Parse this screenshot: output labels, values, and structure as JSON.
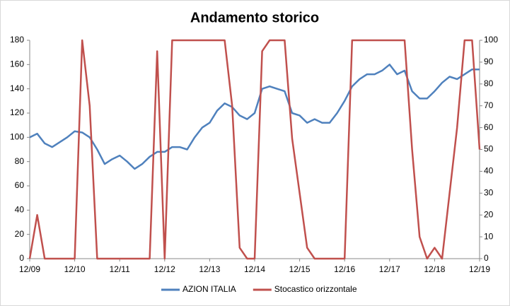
{
  "chart_data": {
    "type": "line",
    "title": "Andamento storico",
    "categories": [
      "12/09",
      null,
      null,
      null,
      null,
      null,
      "12/10",
      null,
      null,
      null,
      null,
      null,
      "12/11",
      null,
      null,
      null,
      null,
      null,
      "12/12",
      null,
      null,
      null,
      null,
      null,
      "12/13",
      null,
      null,
      null,
      null,
      null,
      "12/14",
      null,
      null,
      null,
      null,
      null,
      "12/15",
      null,
      null,
      null,
      null,
      null,
      "12/16",
      null,
      null,
      null,
      null,
      null,
      "12/17",
      null,
      null,
      null,
      null,
      null,
      "12/18",
      null,
      null,
      null,
      null,
      null,
      "12/19"
    ],
    "series": [
      {
        "name": "AZION ITALIA",
        "color": "#4f81bd",
        "axis": "y",
        "values": [
          100,
          103,
          95,
          92,
          96,
          100,
          105,
          104,
          100,
          90,
          78,
          82,
          85,
          80,
          74,
          78,
          84,
          88,
          88,
          92,
          92,
          90,
          100,
          108,
          112,
          122,
          128,
          125,
          118,
          115,
          120,
          140,
          142,
          140,
          138,
          120,
          118,
          112,
          115,
          112,
          112,
          120,
          130,
          142,
          148,
          152,
          152,
          155,
          160,
          152,
          155,
          138,
          132,
          132,
          138,
          145,
          150,
          148,
          152,
          156,
          156
        ]
      },
      {
        "name": "Stocastico orizzontale",
        "color": "#c0504d",
        "axis": "y2",
        "values": [
          0,
          20,
          0,
          0,
          0,
          0,
          0,
          100,
          70,
          0,
          0,
          0,
          0,
          0,
          0,
          0,
          0,
          95,
          0,
          100,
          100,
          100,
          100,
          100,
          100,
          100,
          100,
          70,
          5,
          0,
          0,
          95,
          100,
          100,
          100,
          55,
          30,
          5,
          0,
          0,
          0,
          0,
          0,
          100,
          100,
          100,
          100,
          100,
          100,
          100,
          100,
          50,
          10,
          0,
          5,
          0,
          30,
          60,
          100,
          100,
          50
        ]
      }
    ],
    "ylim": [
      0,
      180
    ],
    "yticks": [
      0,
      20,
      40,
      60,
      80,
      100,
      120,
      140,
      160,
      180
    ],
    "y2lim": [
      0,
      100
    ],
    "y2ticks": [
      0,
      10,
      20,
      30,
      40,
      50,
      60,
      70,
      80,
      90,
      100
    ],
    "legend": "bottom"
  }
}
